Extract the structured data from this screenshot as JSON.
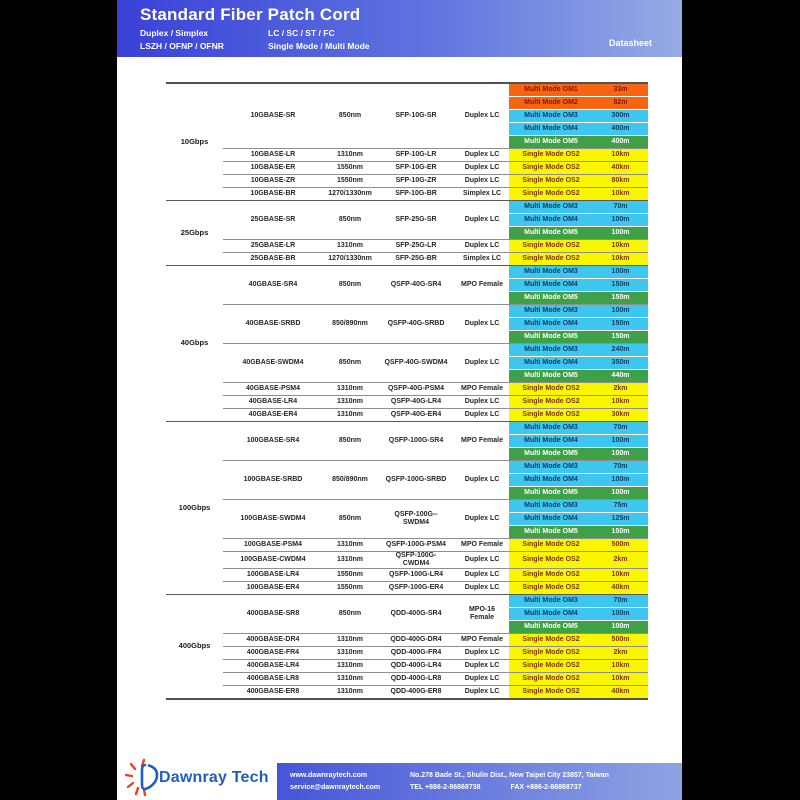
{
  "header": {
    "title": "Standard Fiber Patch Cord",
    "left_lines": [
      "Duplex / Simplex",
      "LSZH / OFNP / OFNR"
    ],
    "mid_lines": [
      "LC / SC / ST / FC",
      "Single Mode / Multi Mode"
    ],
    "datasheet_label": "Datasheet"
  },
  "colors": {
    "orange_bg": "#F86410",
    "orange_text": "#801800",
    "cyan_bg": "#3CC6F0",
    "cyan_text": "#123A5E",
    "green_bg": "#3FA047",
    "green_text": "#FFFFFF",
    "yellow_bg": "#FAF600",
    "yellow_text": "#803300",
    "header_blue_dark": "#3A41D8",
    "header_blue_light": "#97AAE4",
    "footer_blue_dark": "#4556D8",
    "footer_blue_light": "#8FA3E2",
    "logo_blue": "#1D5FC2",
    "logo_ray_orange": "#E8431C"
  },
  "table": {
    "sections": [
      {
        "category": "10Gbps",
        "groups": [
          {
            "model": "10GBASE-SR",
            "wavelength": "850nm",
            "transceiver": "SFP-10G-SR",
            "connector": "Duplex LC",
            "fibers": [
              {
                "mode": "Multi Mode OM1",
                "distance": "33m",
                "c": "orange"
              },
              {
                "mode": "Multi Mode OM2",
                "distance": "82m",
                "c": "orange"
              },
              {
                "mode": "Multi Mode OM3",
                "distance": "300m",
                "c": "cyan"
              },
              {
                "mode": "Multi Mode OM4",
                "distance": "400m",
                "c": "cyan"
              },
              {
                "mode": "Multi Mode OM5",
                "distance": "400m",
                "c": "green"
              }
            ]
          },
          {
            "model": "10GBASE-LR",
            "wavelength": "1310nm",
            "transceiver": "SFP-10G-LR",
            "connector": "Duplex LC",
            "fibers": [
              {
                "mode": "Single Mode OS2",
                "distance": "10km",
                "c": "yellow"
              }
            ]
          },
          {
            "model": "10GBASE-ER",
            "wavelength": "1550nm",
            "transceiver": "SFP-10G-ER",
            "connector": "Duplex LC",
            "fibers": [
              {
                "mode": "Single Mode OS2",
                "distance": "40km",
                "c": "yellow"
              }
            ]
          },
          {
            "model": "10GBASE-ZR",
            "wavelength": "1550nm",
            "transceiver": "SFP-10G-ZR",
            "connector": "Duplex LC",
            "fibers": [
              {
                "mode": "Single Mode OS2",
                "distance": "80km",
                "c": "yellow"
              }
            ]
          },
          {
            "model": "10GBASE-BR",
            "wavelength": "1270/1330nm",
            "transceiver": "SFP-10G-BR",
            "connector": "Simplex LC",
            "fibers": [
              {
                "mode": "Single Mode OS2",
                "distance": "10km",
                "c": "yellow"
              }
            ]
          }
        ]
      },
      {
        "category": "25Gbps",
        "groups": [
          {
            "model": "25GBASE-SR",
            "wavelength": "850nm",
            "transceiver": "SFP-25G-SR",
            "connector": "Duplex LC",
            "fibers": [
              {
                "mode": "Multi Mode OM3",
                "distance": "70m",
                "c": "cyan"
              },
              {
                "mode": "Multi Mode OM4",
                "distance": "100m",
                "c": "cyan"
              },
              {
                "mode": "Multi Mode OM5",
                "distance": "100m",
                "c": "green"
              }
            ]
          },
          {
            "model": "25GBASE-LR",
            "wavelength": "1310nm",
            "transceiver": "SFP-25G-LR",
            "connector": "Duplex LC",
            "fibers": [
              {
                "mode": "Single Mode OS2",
                "distance": "10km",
                "c": "yellow"
              }
            ]
          },
          {
            "model": "25GBASE-BR",
            "wavelength": "1270/1330nm",
            "transceiver": "SFP-25G-BR",
            "connector": "Simplex LC",
            "fibers": [
              {
                "mode": "Single Mode OS2",
                "distance": "10km",
                "c": "yellow"
              }
            ]
          }
        ]
      },
      {
        "category": "40Gbps",
        "groups": [
          {
            "model": "40GBASE-SR4",
            "wavelength": "850nm",
            "transceiver": "QSFP-40G-SR4",
            "connector": "MPO Female",
            "fibers": [
              {
                "mode": "Multi Mode OM3",
                "distance": "100m",
                "c": "cyan"
              },
              {
                "mode": "Multi Mode OM4",
                "distance": "150m",
                "c": "cyan"
              },
              {
                "mode": "Multi Mode OM5",
                "distance": "150m",
                "c": "green"
              }
            ]
          },
          {
            "model": "40GBASE-SRBD",
            "wavelength": "850/890nm",
            "transceiver": "QSFP-40G-SRBD",
            "connector": "Duplex LC",
            "fibers": [
              {
                "mode": "Multi Mode OM3",
                "distance": "100m",
                "c": "cyan"
              },
              {
                "mode": "Multi Mode OM4",
                "distance": "150m",
                "c": "cyan"
              },
              {
                "mode": "Multi Mode OM5",
                "distance": "150m",
                "c": "green"
              }
            ]
          },
          {
            "model": "40GBASE-SWDM4",
            "wavelength": "850nm",
            "transceiver": "QSFP-40G-SWDM4",
            "connector": "Duplex LC",
            "fibers": [
              {
                "mode": "Multi Mode OM3",
                "distance": "240m",
                "c": "cyan"
              },
              {
                "mode": "Multi Mode OM4",
                "distance": "350m",
                "c": "cyan"
              },
              {
                "mode": "Multi Mode OM5",
                "distance": "440m",
                "c": "green"
              }
            ]
          },
          {
            "model": "40GBASE-PSM4",
            "wavelength": "1310nm",
            "transceiver": "QSFP-40G-PSM4",
            "connector": "MPO Female",
            "fibers": [
              {
                "mode": "Single Mode OS2",
                "distance": "2km",
                "c": "yellow"
              }
            ]
          },
          {
            "model": "40GBASE-LR4",
            "wavelength": "1310nm",
            "transceiver": "QSFP-40G-LR4",
            "connector": "Duplex LC",
            "fibers": [
              {
                "mode": "Single Mode OS2",
                "distance": "10km",
                "c": "yellow"
              }
            ]
          },
          {
            "model": "40GBASE-ER4",
            "wavelength": "1310nm",
            "transceiver": "QSFP-40G-ER4",
            "connector": "Duplex LC",
            "fibers": [
              {
                "mode": "Single Mode OS2",
                "distance": "30km",
                "c": "yellow"
              }
            ]
          }
        ]
      },
      {
        "category": "100Gbps",
        "groups": [
          {
            "model": "100GBASE-SR4",
            "wavelength": "850nm",
            "transceiver": "QSFP-100G-SR4",
            "connector": "MPO Female",
            "fibers": [
              {
                "mode": "Multi Mode OM3",
                "distance": "70m",
                "c": "cyan"
              },
              {
                "mode": "Multi Mode OM4",
                "distance": "100m",
                "c": "cyan"
              },
              {
                "mode": "Multi Mode OM5",
                "distance": "100m",
                "c": "green"
              }
            ]
          },
          {
            "model": "100GBASE-SRBD",
            "wavelength": "850/890nm",
            "transceiver": "QSFP-100G-SRBD",
            "connector": "Duplex LC",
            "fibers": [
              {
                "mode": "Multi Mode OM3",
                "distance": "70m",
                "c": "cyan"
              },
              {
                "mode": "Multi Mode OM4",
                "distance": "100m",
                "c": "cyan"
              },
              {
                "mode": "Multi Mode OM5",
                "distance": "100m",
                "c": "green"
              }
            ]
          },
          {
            "model": "100GBASE-SWDM4",
            "wavelength": "850nm",
            "transceiver": "QSFP-100G--\nSWDM4",
            "connector": "Duplex LC",
            "fibers": [
              {
                "mode": "Multi Mode OM3",
                "distance": "75m",
                "c": "cyan"
              },
              {
                "mode": "Multi Mode OM4",
                "distance": "125m",
                "c": "cyan"
              },
              {
                "mode": "Multi Mode OM5",
                "distance": "150m",
                "c": "green"
              }
            ]
          },
          {
            "model": "100GBASE-PSM4",
            "wavelength": "1310nm",
            "transceiver": "QSFP-100G-PSM4",
            "connector": "MPO Female",
            "fibers": [
              {
                "mode": "Single Mode OS2",
                "distance": "500m",
                "c": "yellow"
              }
            ]
          },
          {
            "model": "100GBASE-CWDM4",
            "wavelength": "1310nm",
            "transceiver": "QSFP-100G-\nCWDM4",
            "connector": "Duplex LC",
            "fibers": [
              {
                "mode": "Single Mode OS2",
                "distance": "2km",
                "c": "yellow"
              }
            ]
          },
          {
            "model": "100GBASE-LR4",
            "wavelength": "1550nm",
            "transceiver": "QSFP-100G-LR4",
            "connector": "Duplex LC",
            "fibers": [
              {
                "mode": "Single Mode OS2",
                "distance": "10km",
                "c": "yellow"
              }
            ]
          },
          {
            "model": "100GBASE-ER4",
            "wavelength": "1550nm",
            "transceiver": "QSFP-100G-ER4",
            "connector": "Duplex LC",
            "fibers": [
              {
                "mode": "Single Mode OS2",
                "distance": "40km",
                "c": "yellow"
              }
            ]
          }
        ]
      },
      {
        "category": "400Gbps",
        "groups": [
          {
            "model": "400GBASE-SR8",
            "wavelength": "850nm",
            "transceiver": "QDD-400G-SR4",
            "connector": "MPO-16 Female",
            "fibers": [
              {
                "mode": "Multi Mode OM3",
                "distance": "70m",
                "c": "cyan"
              },
              {
                "mode": "Multi Mode OM4",
                "distance": "100m",
                "c": "cyan"
              },
              {
                "mode": "Multi Mode OM5",
                "distance": "100m",
                "c": "green"
              }
            ]
          },
          {
            "model": "400GBASE-DR4",
            "wavelength": "1310nm",
            "transceiver": "QDD-400G-DR4",
            "connector": "MPO Female",
            "fibers": [
              {
                "mode": "Single Mode OS2",
                "distance": "500m",
                "c": "yellow"
              }
            ]
          },
          {
            "model": "400GBASE-FR4",
            "wavelength": "1310nm",
            "transceiver": "QDD-400G-FR4",
            "connector": "Duplex LC",
            "fibers": [
              {
                "mode": "Single Mode OS2",
                "distance": "2km",
                "c": "yellow"
              }
            ]
          },
          {
            "model": "400GBASE-LR4",
            "wavelength": "1310nm",
            "transceiver": "QDD-400G-LR4",
            "connector": "Duplex LC",
            "fibers": [
              {
                "mode": "Single Mode OS2",
                "distance": "10km",
                "c": "yellow"
              }
            ]
          },
          {
            "model": "400GBASE-LR8",
            "wavelength": "1310nm",
            "transceiver": "QDD-400G-LR8",
            "connector": "Duplex LC",
            "fibers": [
              {
                "mode": "Single Mode OS2",
                "distance": "10km",
                "c": "yellow"
              }
            ]
          },
          {
            "model": "400GBASE-ER8",
            "wavelength": "1310nm",
            "transceiver": "QDD-400G-ER8",
            "connector": "Duplex LC",
            "fibers": [
              {
                "mode": "Single Mode OS2",
                "distance": "40km",
                "c": "yellow"
              }
            ]
          }
        ]
      }
    ]
  },
  "footer": {
    "logo_text": "Dawnray Tech",
    "website": "www.dawnraytech.com",
    "email": "service@dawnraytech.com",
    "address": "No.278 Bade St., Shulin Dist., New Taipei City 23857, Taiwan",
    "tel_line": "TEL  +886-2-86868738",
    "fax_line": "FAX  +886-2-86868737"
  }
}
